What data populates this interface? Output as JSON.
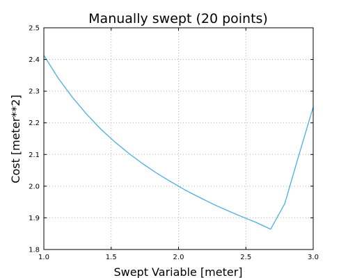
{
  "chart_data": {
    "type": "line",
    "title": "Manually swept (20 points)",
    "xlabel": "Swept Variable  [meter]",
    "ylabel": "Cost  [meter**2]",
    "xlim": [
      1.0,
      3.0
    ],
    "ylim": [
      1.8,
      2.5
    ],
    "xticks": [
      "1.0",
      "1.5",
      "2.0",
      "2.5",
      "3.0"
    ],
    "yticks": [
      "1.8",
      "1.9",
      "2.0",
      "2.1",
      "2.2",
      "2.3",
      "2.4",
      "2.5"
    ],
    "grid": true,
    "color": "#4aaee0",
    "series": [
      {
        "x": [
          1.0,
          1.105,
          1.211,
          1.316,
          1.421,
          1.526,
          1.632,
          1.737,
          1.842,
          1.947,
          2.053,
          2.158,
          2.263,
          2.368,
          2.474,
          2.579,
          2.684,
          2.789,
          2.895,
          3.0
        ],
        "y": [
          2.413,
          2.342,
          2.281,
          2.228,
          2.181,
          2.14,
          2.103,
          2.07,
          2.04,
          2.013,
          1.987,
          1.964,
          1.942,
          1.922,
          1.903,
          1.885,
          1.864,
          1.945,
          2.1,
          2.25
        ]
      }
    ]
  }
}
